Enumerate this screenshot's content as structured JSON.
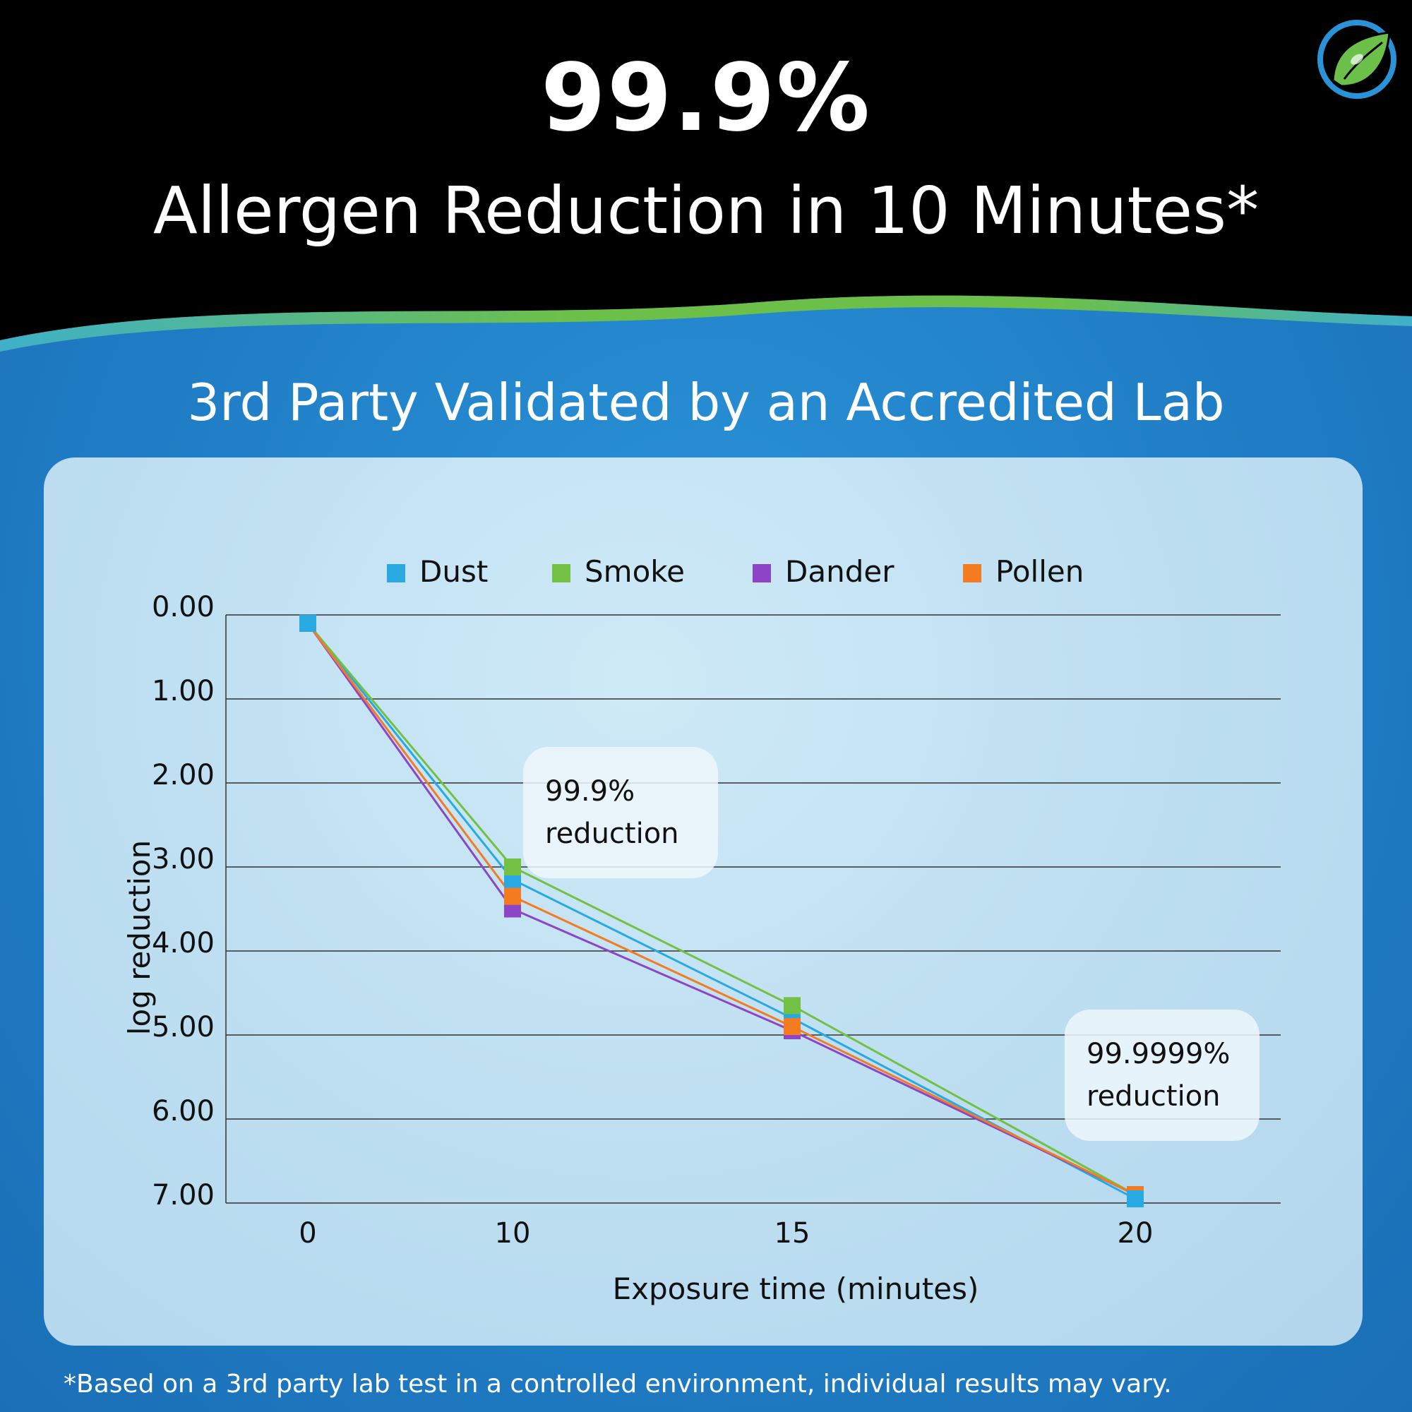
{
  "headline": {
    "percent": "99.9%",
    "main": "Allergen Reduction in 10 Minutes*"
  },
  "subtitle": "3rd Party Validated by an Accredited Lab",
  "footnote": "*Based on a 3rd party lab test in a controlled environment, individual results may vary.",
  "colors": {
    "header_bg": "#000000",
    "page_blue": "#1f7cc4",
    "wave_green": "#6cc04a",
    "wave_teal": "#3fb0c9"
  },
  "logo_icon": "leaf-circle-logo-icon",
  "chart_data": {
    "type": "line",
    "xlabel": "Exposure time (minutes)",
    "ylabel": "log reduction",
    "x": [
      0,
      10,
      15,
      20
    ],
    "x_tick_labels": [
      "0",
      "10",
      "15",
      "20"
    ],
    "y_tick_labels": [
      "0.00",
      "1.00",
      "2.00",
      "3.00",
      "4.00",
      "5.00",
      "6.00",
      "7.00"
    ],
    "ylim": [
      0,
      7
    ],
    "y_inverted": true,
    "grid": true,
    "legend_position": "top",
    "series": [
      {
        "name": "Dust",
        "color": "#29a9e1",
        "values": [
          0.1,
          3.15,
          4.8,
          6.95
        ]
      },
      {
        "name": "Smoke",
        "color": "#72c044",
        "values": [
          0.1,
          3.0,
          4.65,
          6.9
        ]
      },
      {
        "name": "Dander",
        "color": "#8e44c7",
        "values": [
          0.1,
          3.5,
          4.95,
          6.9
        ]
      },
      {
        "name": "Pollen",
        "color": "#f47b20",
        "values": [
          0.1,
          3.35,
          4.9,
          6.9
        ]
      }
    ],
    "annotations": [
      {
        "line1": "99.9%",
        "line2": "reduction",
        "at_x": 10
      },
      {
        "line1": "99.9999%",
        "line2": "reduction",
        "at_x": 20
      }
    ]
  }
}
